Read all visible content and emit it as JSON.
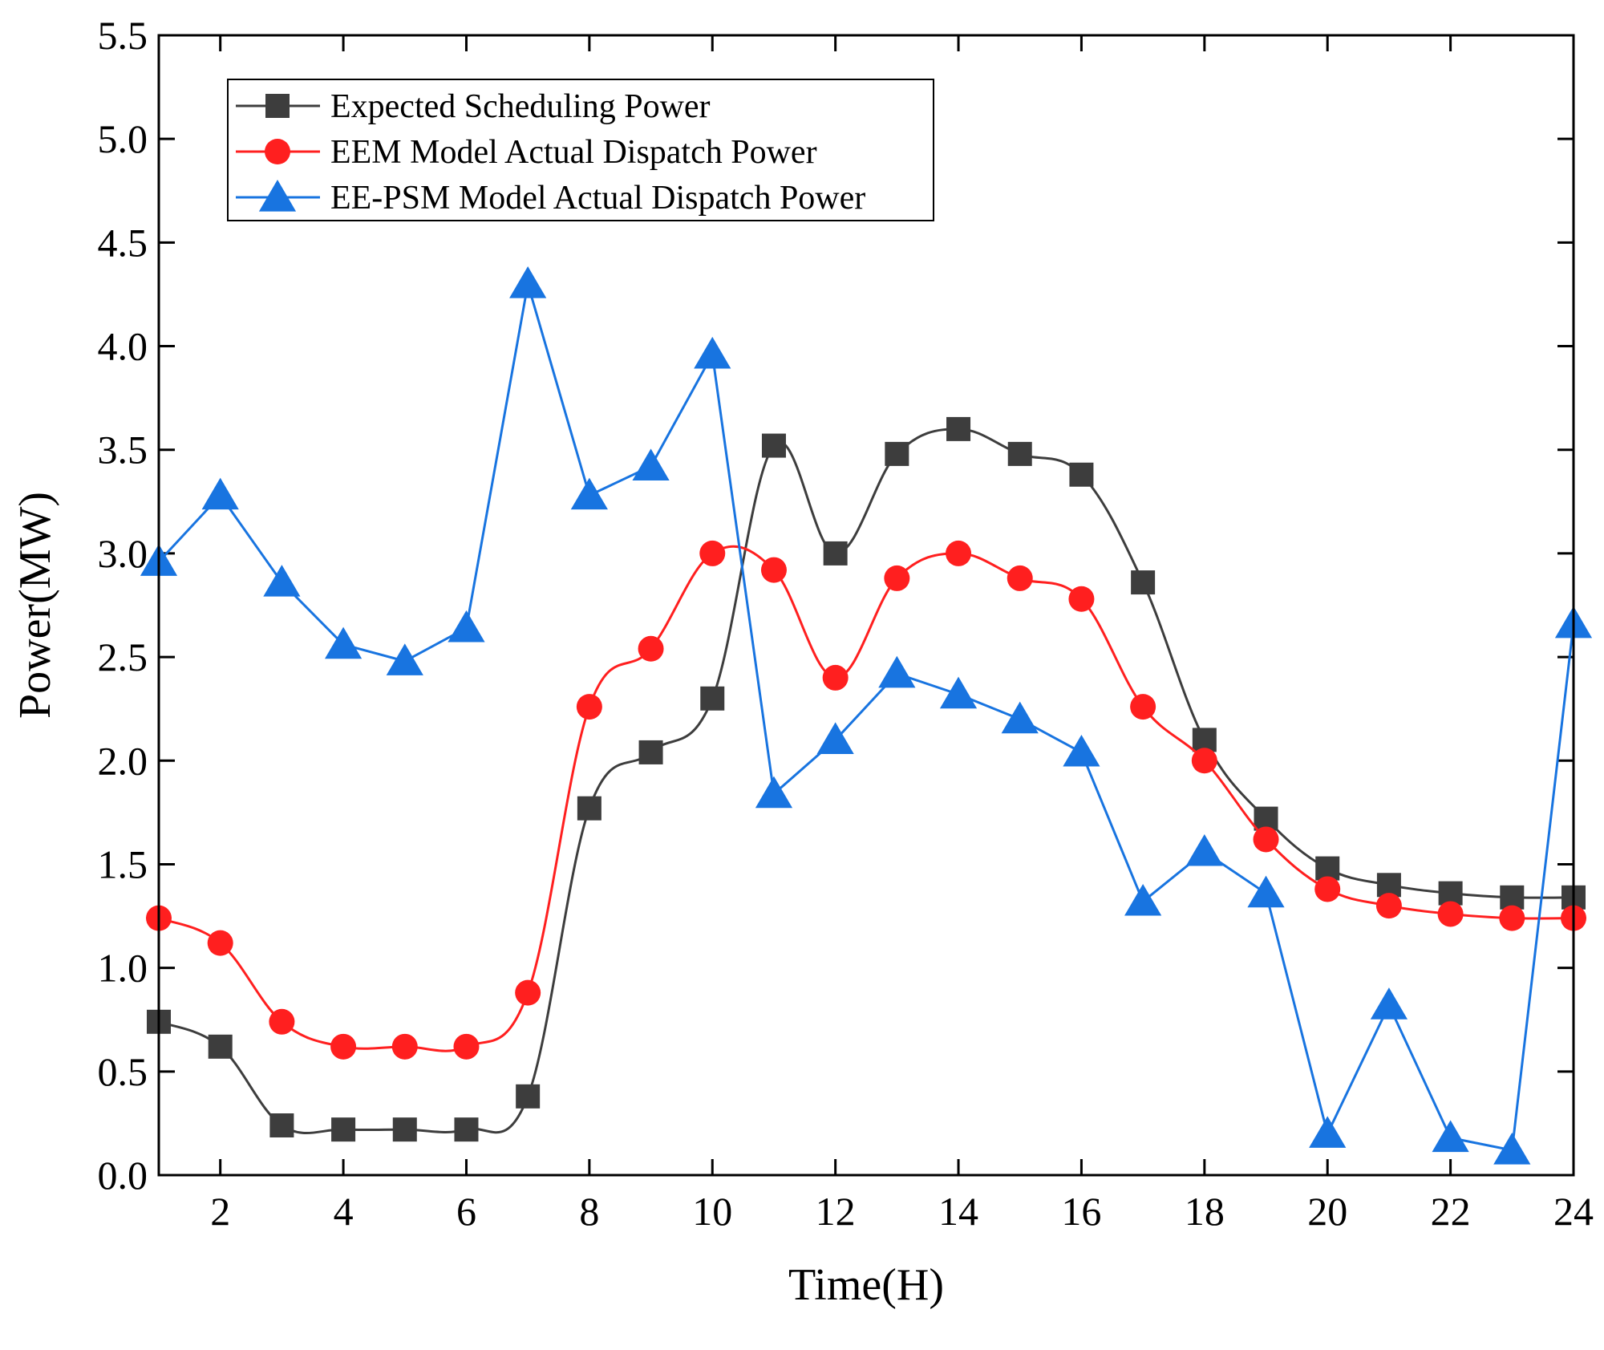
{
  "chart_data": {
    "type": "line",
    "title": "",
    "xlabel": "Time(H)",
    "ylabel": "Power(MW)",
    "xlim": [
      1,
      24
    ],
    "ylim": [
      0,
      5.5
    ],
    "xticks": [
      2,
      4,
      6,
      8,
      10,
      12,
      14,
      16,
      18,
      20,
      22,
      24
    ],
    "yticks": [
      0.0,
      0.5,
      1.0,
      1.5,
      2.0,
      2.5,
      3.0,
      3.5,
      4.0,
      4.5,
      5.0,
      5.5
    ],
    "ytick_labels": [
      "0.0",
      "0.5",
      "1.0",
      "1.5",
      "2.0",
      "2.5",
      "3.0",
      "3.5",
      "4.0",
      "4.5",
      "5.0",
      "5.5"
    ],
    "xtick_labels": [
      "2",
      "4",
      "6",
      "8",
      "10",
      "12",
      "14",
      "16",
      "18",
      "20",
      "22",
      "24"
    ],
    "x": [
      1,
      2,
      3,
      4,
      5,
      6,
      7,
      8,
      9,
      10,
      11,
      12,
      13,
      14,
      15,
      16,
      17,
      18,
      19,
      20,
      21,
      22,
      23,
      24
    ],
    "legend_position": "top-left",
    "series": [
      {
        "name": "Expected Scheduling Power",
        "color": "#3d3d3d",
        "marker": "square",
        "smooth": true,
        "values": [
          0.74,
          0.62,
          0.24,
          0.22,
          0.22,
          0.22,
          0.38,
          1.77,
          2.04,
          2.3,
          3.52,
          3.0,
          3.48,
          3.6,
          3.48,
          3.38,
          2.86,
          2.1,
          1.72,
          1.48,
          1.4,
          1.36,
          1.34,
          1.34
        ]
      },
      {
        "name": "EEM Model Actual Dispatch Power",
        "color": "#ff1f1f",
        "marker": "circle",
        "smooth": true,
        "values": [
          1.24,
          1.12,
          0.74,
          0.62,
          0.62,
          0.62,
          0.88,
          2.26,
          2.54,
          3.0,
          2.92,
          2.4,
          2.88,
          3.0,
          2.88,
          2.78,
          2.26,
          2.0,
          1.62,
          1.38,
          1.3,
          1.26,
          1.24,
          1.24
        ]
      },
      {
        "name": "EE-PSM Model Actual Dispatch Power",
        "color": "#1874e0",
        "marker": "triangle",
        "smooth": false,
        "values": [
          2.96,
          3.28,
          2.86,
          2.56,
          2.48,
          2.64,
          4.3,
          3.28,
          3.42,
          3.96,
          1.84,
          2.1,
          2.42,
          2.32,
          2.2,
          2.04,
          1.32,
          1.56,
          1.36,
          0.2,
          0.82,
          0.18,
          0.12,
          2.66
        ]
      }
    ]
  }
}
